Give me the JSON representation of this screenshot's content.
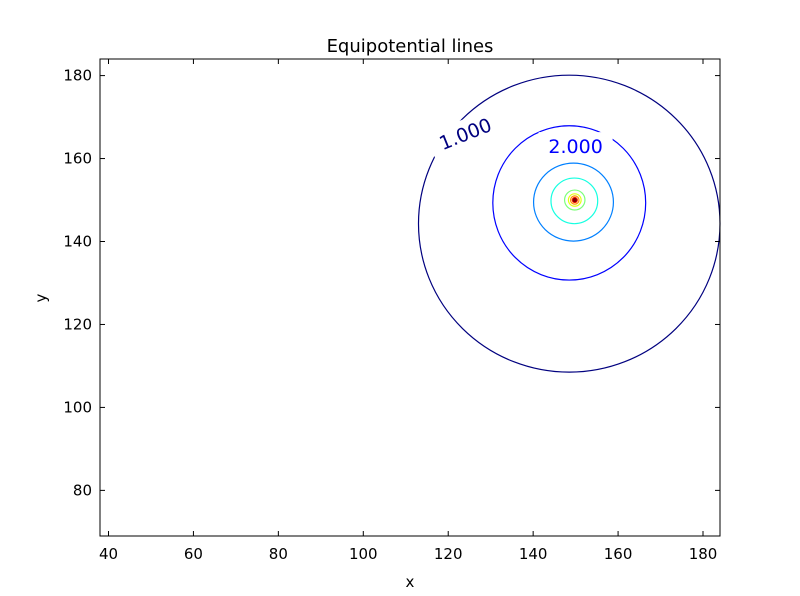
{
  "chart_data": {
    "type": "contour",
    "title": "Equipotential lines",
    "xlabel": "x",
    "ylabel": "y",
    "xlim": [
      38,
      184
    ],
    "ylim": [
      69,
      184
    ],
    "xticks": [
      40,
      60,
      80,
      100,
      120,
      140,
      160,
      180
    ],
    "yticks": [
      80,
      100,
      120,
      140,
      160,
      180
    ],
    "grid": false,
    "source_center": [
      149.8,
      150
    ],
    "levels": [
      {
        "value": 1.0,
        "label": "1.000",
        "color": "#00007f",
        "center": [
          148.5,
          144.3
        ],
        "rx": 35.5,
        "ry": 35.8,
        "label_pos": [
          124,
          166
        ],
        "label_rotation": -22
      },
      {
        "value": 2.0,
        "label": "2.000",
        "color": "#0000ff",
        "center": [
          148.5,
          149.3
        ],
        "rx": 18,
        "ry": 18.6,
        "label_pos": [
          150,
          163
        ],
        "label_rotation": 0
      },
      {
        "value": 3.0,
        "label": "",
        "color": "#0080ff",
        "center": [
          149.5,
          149.5
        ],
        "rx": 9.4,
        "ry": 9.4
      },
      {
        "value": 4.0,
        "label": "",
        "color": "#15ffe1",
        "center": [
          149.7,
          149.8
        ],
        "rx": 5.5,
        "ry": 5.5
      },
      {
        "value": 5.0,
        "label": "",
        "color": "#7dff7a",
        "center": [
          149.8,
          150
        ],
        "rx": 2.4,
        "ry": 2.4
      },
      {
        "value": 6.0,
        "label": "",
        "color": "#e4ff13",
        "center": [
          149.8,
          150
        ],
        "rx": 1.5,
        "ry": 1.5
      },
      {
        "value": 7.0,
        "label": "",
        "color": "#ff9400",
        "center": [
          149.8,
          150
        ],
        "rx": 1.0,
        "ry": 1.0
      },
      {
        "value": 8.0,
        "label": "",
        "color": "#ff1e00",
        "center": [
          149.8,
          150
        ],
        "rx": 0.6,
        "ry": 0.6
      },
      {
        "value": 9.0,
        "label": "",
        "color": "#7f0000",
        "center": [
          149.8,
          150
        ],
        "rx": 0.3,
        "ry": 0.3
      }
    ]
  }
}
